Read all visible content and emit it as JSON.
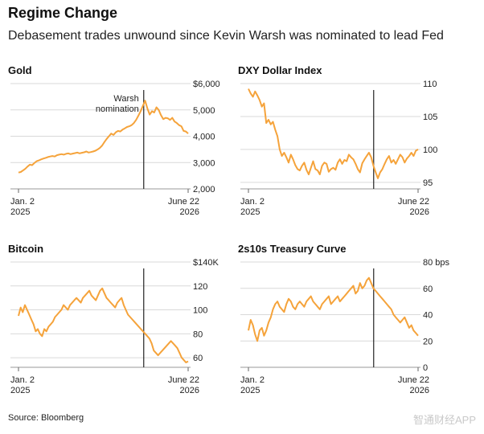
{
  "title": "Regime Change",
  "subtitle": "Debasement trades unwound since Kevin Warsh was nominated to lead Fed",
  "source": "Source: Bloomberg",
  "watermark": "智通财经APP",
  "colors": {
    "line": "#f5a33b",
    "vline": "#222222",
    "grid": "#d9d9d9"
  },
  "chart_data": [
    {
      "type": "line",
      "title": "Gold",
      "x_start_label": [
        "Jan. 2",
        "2025"
      ],
      "x_end_label": [
        "June 22",
        "2026"
      ],
      "ylim": [
        2000,
        6000
      ],
      "y_ticks": [
        "$6,000",
        "5,000",
        "4,000",
        "3,000",
        "2,000"
      ],
      "y_tick_values": [
        6000,
        5000,
        4000,
        3000,
        2000
      ],
      "annotation": [
        "Warsh",
        "nomination"
      ],
      "event_fraction": 0.74,
      "values": [
        2620,
        2640,
        2700,
        2760,
        2850,
        2920,
        2900,
        2980,
        3050,
        3080,
        3120,
        3150,
        3180,
        3210,
        3230,
        3250,
        3230,
        3280,
        3300,
        3320,
        3300,
        3330,
        3350,
        3320,
        3340,
        3360,
        3380,
        3350,
        3370,
        3390,
        3420,
        3380,
        3400,
        3420,
        3450,
        3500,
        3560,
        3650,
        3780,
        3900,
        4000,
        4100,
        4050,
        4150,
        4200,
        4180,
        4250,
        4300,
        4350,
        4380,
        4420,
        4500,
        4620,
        4780,
        4950,
        5150,
        5350,
        5050,
        4820,
        4950,
        4900,
        5100,
        5000,
        4800,
        4650,
        4700,
        4680,
        4620,
        4700,
        4560,
        4500,
        4420,
        4380,
        4200,
        4180,
        4100
      ]
    },
    {
      "type": "line",
      "title": "DXY Dollar Index",
      "x_start_label": [
        "Jan. 2",
        "2025"
      ],
      "x_end_label": [
        "June 22",
        "2026"
      ],
      "ylim": [
        94,
        110
      ],
      "y_ticks": [
        "110",
        "105",
        "100",
        "95"
      ],
      "y_tick_values": [
        110,
        105,
        100,
        95
      ],
      "event_fraction": 0.74,
      "values": [
        109.2,
        108.5,
        108.0,
        108.8,
        108.2,
        107.5,
        106.5,
        107.0,
        104.0,
        104.5,
        103.8,
        104.2,
        103.0,
        102.0,
        100.0,
        99.0,
        99.5,
        98.8,
        98.0,
        99.2,
        98.5,
        97.6,
        97.0,
        96.8,
        97.5,
        98.0,
        96.9,
        96.2,
        97.2,
        98.2,
        97.0,
        96.8,
        96.2,
        97.5,
        98.0,
        97.8,
        96.6,
        97.0,
        97.2,
        96.9,
        98.0,
        98.5,
        97.8,
        98.4,
        98.2,
        99.2,
        98.8,
        98.5,
        97.8,
        97.0,
        96.5,
        97.9,
        98.5,
        99.0,
        99.5,
        98.8,
        97.5,
        96.5,
        95.6,
        96.5,
        97.0,
        97.8,
        98.5,
        99.0,
        98.0,
        98.4,
        97.8,
        98.5,
        99.2,
        98.8,
        98.0,
        98.6,
        99.0,
        99.5,
        99.0,
        99.8,
        100.0
      ]
    },
    {
      "type": "line",
      "title": "Bitcoin",
      "x_start_label": [
        "Jan. 2",
        "2025"
      ],
      "x_end_label": [
        "June 22",
        "2026"
      ],
      "ylim": [
        52,
        140
      ],
      "y_ticks": [
        "$140K",
        "120",
        "100",
        "80",
        "60"
      ],
      "y_tick_values": [
        140,
        120,
        100,
        80,
        60
      ],
      "event_fraction": 0.74,
      "values": [
        95,
        102,
        98,
        104,
        100,
        96,
        92,
        88,
        82,
        84,
        80,
        78,
        84,
        82,
        86,
        88,
        90,
        94,
        96,
        98,
        100,
        104,
        102,
        100,
        104,
        106,
        108,
        110,
        108,
        106,
        110,
        112,
        114,
        116,
        112,
        110,
        108,
        112,
        116,
        118,
        114,
        110,
        108,
        106,
        104,
        102,
        106,
        108,
        110,
        104,
        100,
        96,
        94,
        92,
        90,
        88,
        86,
        84,
        82,
        80,
        78,
        76,
        72,
        66,
        64,
        62,
        64,
        66,
        68,
        70,
        72,
        74,
        72,
        70,
        68,
        64,
        60,
        58,
        56,
        57
      ]
    },
    {
      "type": "line",
      "title": "2s10s Treasury Curve",
      "x_start_label": [
        "Jan. 2",
        "2025"
      ],
      "x_end_label": [
        "June 22",
        "2026"
      ],
      "ylim": [
        0,
        80
      ],
      "y_ticks": [
        "80 bps",
        "60",
        "40",
        "20",
        "0"
      ],
      "y_tick_values": [
        80,
        60,
        40,
        20,
        0
      ],
      "event_fraction": 0.74,
      "values": [
        28,
        36,
        32,
        25,
        20,
        28,
        30,
        24,
        28,
        34,
        38,
        44,
        48,
        50,
        46,
        44,
        42,
        48,
        52,
        50,
        46,
        44,
        48,
        50,
        48,
        46,
        50,
        52,
        54,
        50,
        48,
        46,
        44,
        48,
        50,
        52,
        54,
        48,
        50,
        52,
        54,
        50,
        52,
        54,
        56,
        58,
        60,
        62,
        56,
        58,
        64,
        60,
        62,
        66,
        68,
        64,
        60,
        58,
        56,
        54,
        52,
        50,
        48,
        46,
        44,
        40,
        38,
        36,
        34,
        36,
        38,
        34,
        30,
        32,
        28,
        26,
        24
      ]
    }
  ]
}
